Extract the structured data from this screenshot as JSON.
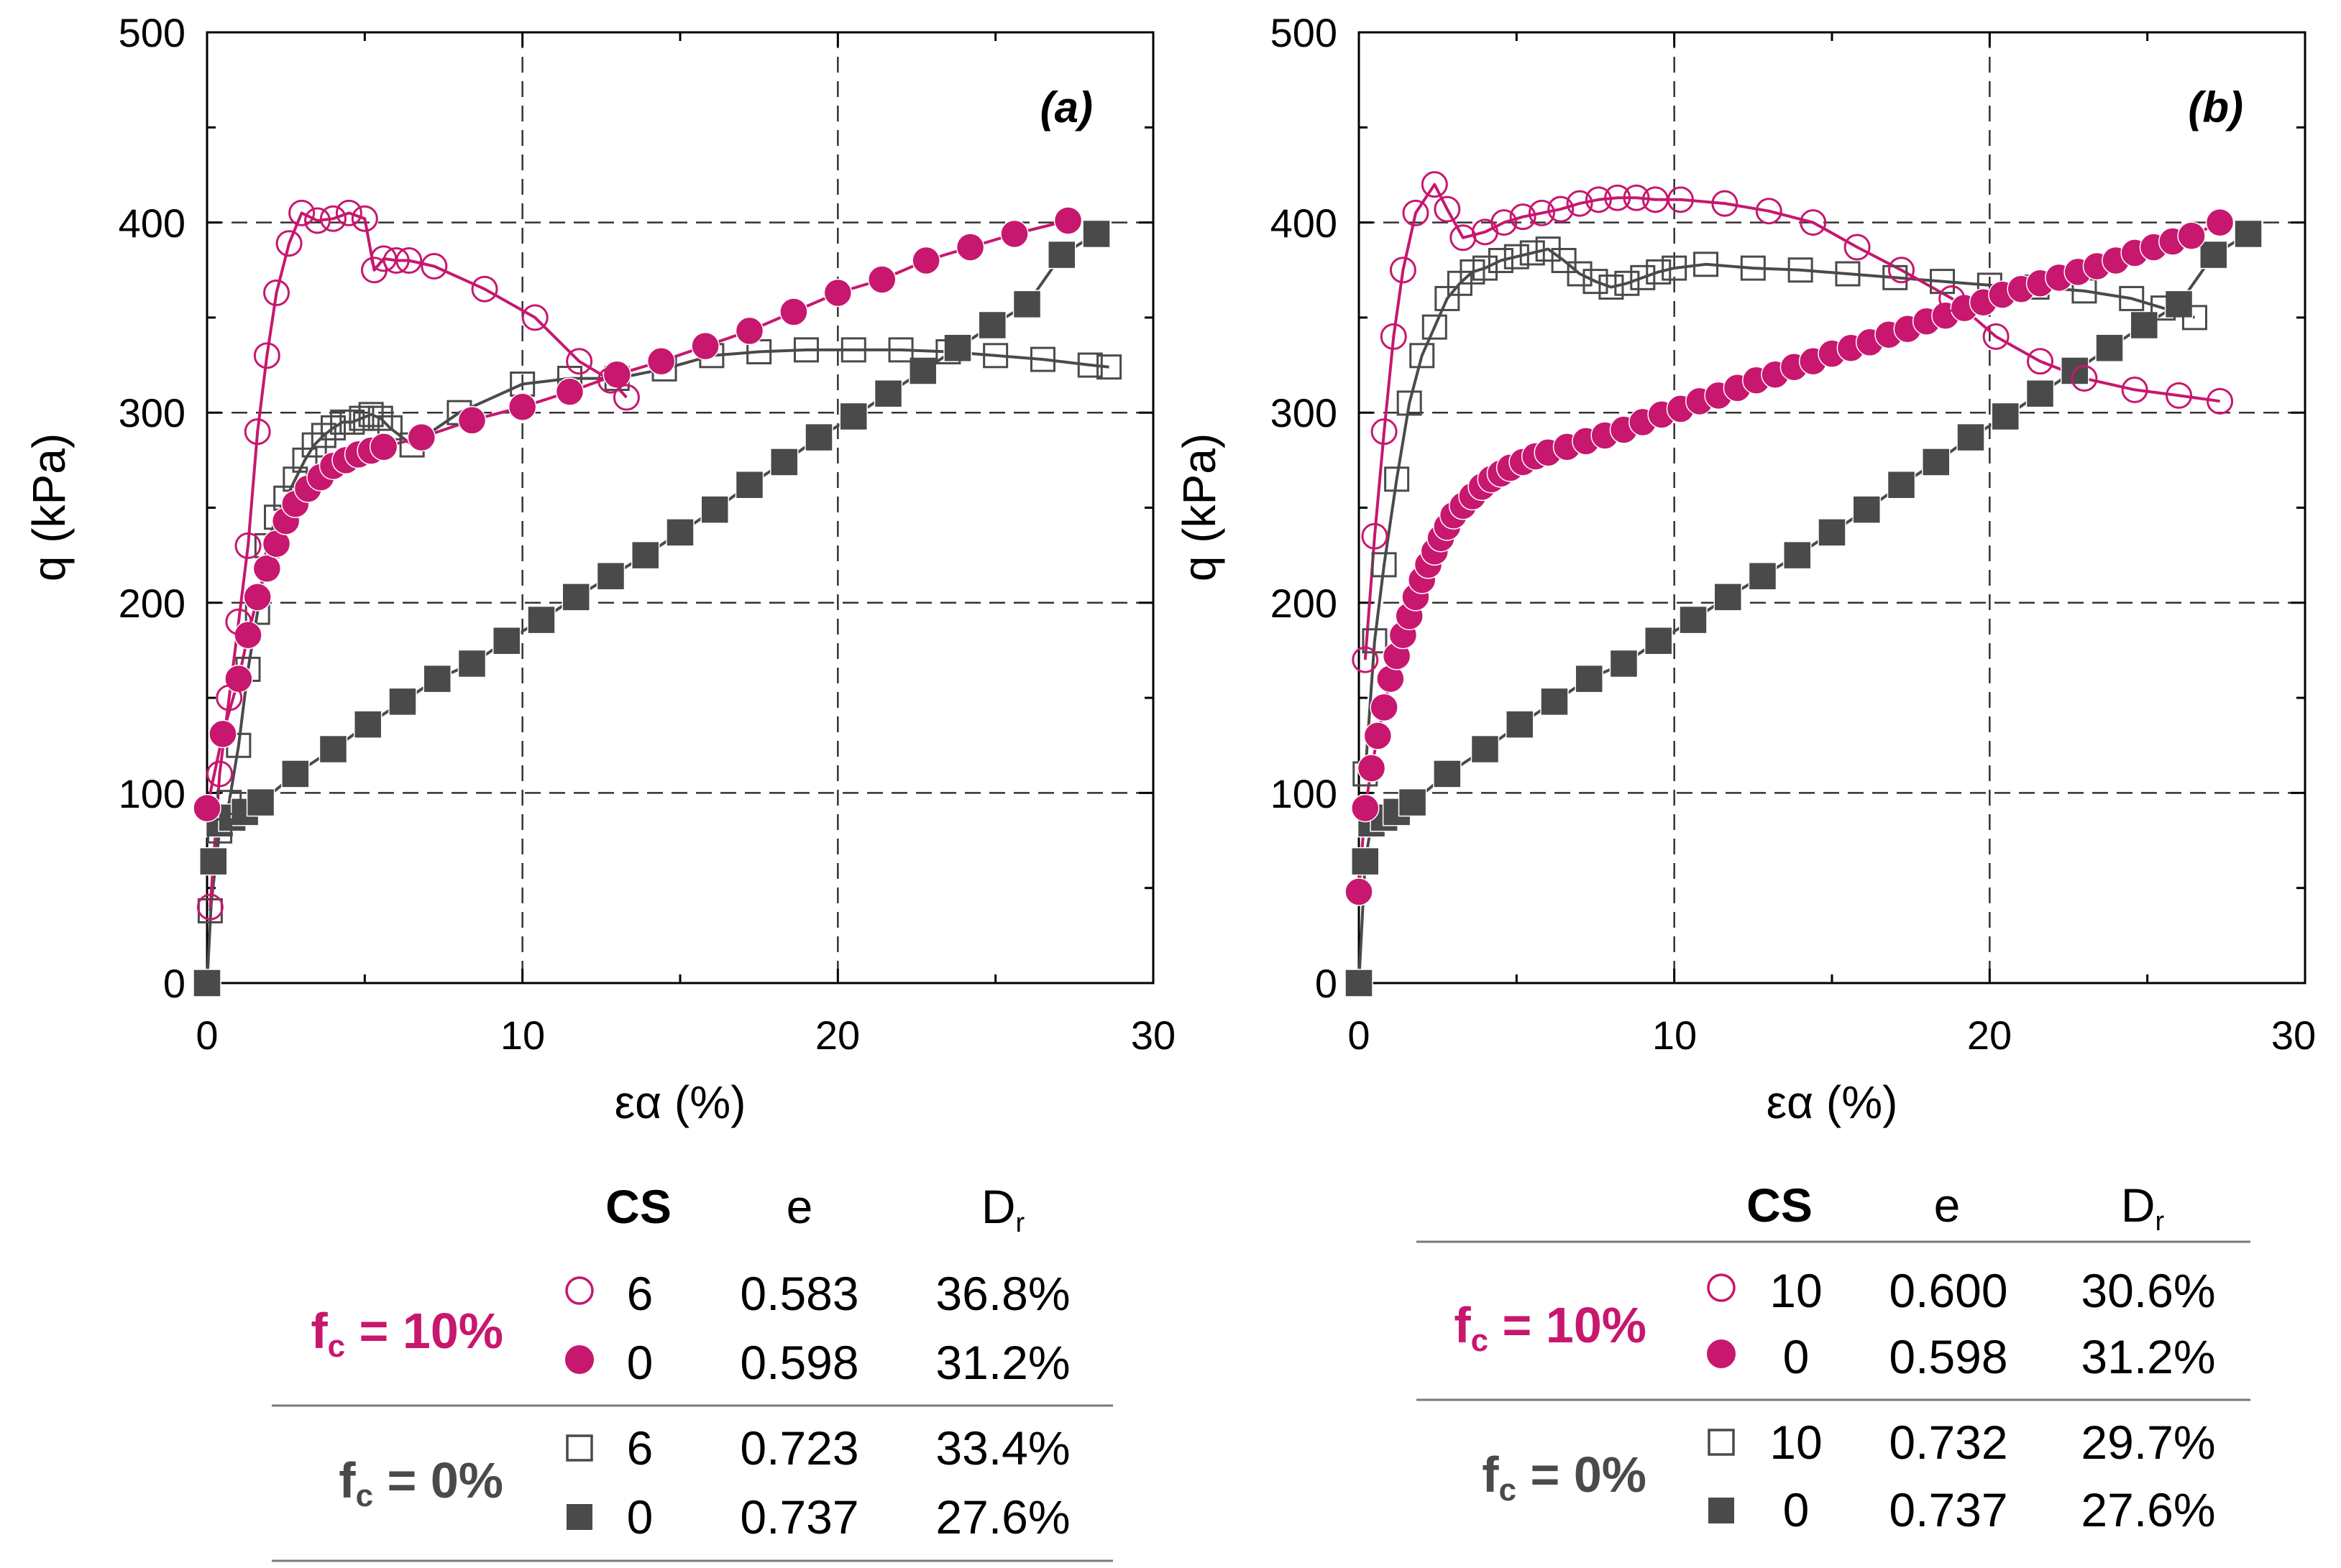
{
  "chart_data": [
    {
      "type": "scatter",
      "panel": "(a)",
      "ylabel": "q (kPa)",
      "xlabel": "εα (%)",
      "xlim": [
        0,
        30
      ],
      "ylim": [
        0,
        500
      ],
      "xticks": [
        "0",
        "10",
        "20",
        "30"
      ],
      "yticks": [
        "0",
        "100",
        "200",
        "300",
        "400",
        "500"
      ],
      "grid": true,
      "series": [
        {
          "name": "f_c = 10%, CS 6",
          "marker": "open-circle",
          "color": "#c7176f",
          "x": [
            0.1,
            0.4,
            0.7,
            1.0,
            1.3,
            1.6,
            1.9,
            2.2,
            2.6,
            3.0,
            3.5,
            4.0,
            4.5,
            5.0,
            5.3,
            5.6,
            6.0,
            6.4,
            7.2,
            8.8,
            10.4,
            11.8,
            12.8,
            13.3
          ],
          "y": [
            40,
            110,
            150,
            190,
            230,
            290,
            330,
            363,
            389,
            405,
            401,
            402,
            405,
            402,
            375,
            381,
            380,
            380,
            377,
            365,
            350,
            327,
            317,
            308
          ]
        },
        {
          "name": "f_c = 10%, CS 0",
          "marker": "filled-circle",
          "color": "#c7176f",
          "x": [
            0,
            0.5,
            1.0,
            1.3,
            1.6,
            1.9,
            2.2,
            2.5,
            2.8,
            3.2,
            3.6,
            4.0,
            4.4,
            4.8,
            5.2,
            5.6,
            6.8,
            8.4,
            10.0,
            11.5,
            13.0,
            14.4,
            15.8,
            17.2,
            18.6,
            20.0,
            21.4,
            22.8,
            24.2,
            25.6,
            27.3
          ],
          "y": [
            92,
            131,
            160,
            183,
            203,
            218,
            231,
            243,
            252,
            260,
            266,
            272,
            275,
            278,
            280,
            282,
            287,
            296,
            303,
            311,
            320,
            327,
            335,
            343,
            353,
            363,
            370,
            380,
            387,
            394,
            401
          ]
        },
        {
          "name": "f_c = 0%, CS 6",
          "marker": "open-square",
          "color": "#4a4a4a",
          "x": [
            0.1,
            0.4,
            0.7,
            1.0,
            1.3,
            1.6,
            1.9,
            2.2,
            2.5,
            2.8,
            3.1,
            3.4,
            3.7,
            4.0,
            4.3,
            4.6,
            4.9,
            5.2,
            5.5,
            5.8,
            6.5,
            8.0,
            10.0,
            11.5,
            13.0,
            14.5,
            16.0,
            17.5,
            19.0,
            20.5,
            22.0,
            23.5,
            25.0,
            26.5,
            28.0,
            28.6
          ],
          "y": [
            38,
            80,
            95,
            125,
            165,
            195,
            230,
            245,
            255,
            265,
            275,
            283,
            288,
            292,
            295,
            295,
            297,
            299,
            297,
            292,
            283,
            300,
            315,
            318,
            318,
            323,
            330,
            332,
            333,
            333,
            333,
            332,
            330,
            328,
            325,
            324
          ]
        },
        {
          "name": "f_c = 0%, CS 0",
          "marker": "filled-square",
          "color": "#4a4a4a",
          "x": [
            0,
            0.2,
            0.4,
            0.8,
            1.2,
            1.7,
            2.8,
            4.0,
            5.1,
            6.2,
            7.3,
            8.4,
            9.5,
            10.6,
            11.7,
            12.8,
            13.9,
            15.0,
            16.1,
            17.2,
            18.3,
            19.4,
            20.5,
            21.6,
            22.7,
            23.8,
            24.9,
            26.0,
            27.1,
            28.2
          ],
          "y": [
            0,
            64,
            84,
            87,
            90,
            95,
            110,
            123,
            136,
            148,
            160,
            168,
            180,
            191,
            203,
            214,
            225,
            237,
            249,
            262,
            274,
            287,
            298,
            310,
            322,
            334,
            346,
            357,
            383,
            394
          ]
        }
      ]
    },
    {
      "type": "scatter",
      "panel": "(b)",
      "ylabel": "q (kPa)",
      "xlabel": "εα (%)",
      "xlim": [
        0,
        30
      ],
      "ylim": [
        0,
        500
      ],
      "xticks": [
        "0",
        "10",
        "20",
        "30"
      ],
      "yticks": [
        "0",
        "100",
        "200",
        "300",
        "400",
        "500"
      ],
      "grid": true,
      "series": [
        {
          "name": "f_c = 10%, CS 10",
          "marker": "open-circle",
          "color": "#c7176f",
          "x": [
            0.2,
            0.5,
            0.8,
            1.1,
            1.4,
            1.8,
            2.4,
            2.8,
            3.3,
            4.0,
            4.6,
            5.2,
            5.8,
            6.4,
            7.0,
            7.6,
            8.2,
            8.8,
            9.4,
            10.2,
            11.6,
            13.0,
            14.4,
            15.8,
            17.2,
            18.8,
            20.2,
            21.6,
            23.0,
            24.6,
            26.0,
            27.3
          ],
          "y": [
            170,
            235,
            290,
            340,
            375,
            405,
            420,
            407,
            392,
            395,
            400,
            403,
            405,
            407,
            410,
            412,
            413,
            413,
            412,
            412,
            410,
            406,
            400,
            387,
            375,
            360,
            340,
            327,
            318,
            312,
            309,
            306
          ]
        },
        {
          "name": "f_c = 10%, CS 0",
          "marker": "filled-circle",
          "color": "#c7176f",
          "x": [
            0,
            0.2,
            0.4,
            0.6,
            0.8,
            1.0,
            1.2,
            1.4,
            1.6,
            1.8,
            2.0,
            2.2,
            2.4,
            2.6,
            2.8,
            3.0,
            3.3,
            3.6,
            3.9,
            4.2,
            4.5,
            4.8,
            5.2,
            5.6,
            6.0,
            6.6,
            7.2,
            7.8,
            8.4,
            9.0,
            9.6,
            10.2,
            10.8,
            11.4,
            12.0,
            12.6,
            13.2,
            13.8,
            14.4,
            15.0,
            15.6,
            16.2,
            16.8,
            17.4,
            18.0,
            18.6,
            19.2,
            19.8,
            20.4,
            21.0,
            21.6,
            22.2,
            22.8,
            23.4,
            24.0,
            24.6,
            25.2,
            25.8,
            26.4,
            27.3
          ],
          "y": [
            48,
            92,
            113,
            130,
            145,
            160,
            172,
            183,
            193,
            203,
            212,
            220,
            227,
            234,
            240,
            246,
            251,
            256,
            261,
            265,
            268,
            271,
            274,
            277,
            279,
            282,
            285,
            288,
            291,
            295,
            299,
            302,
            306,
            309,
            313,
            317,
            320,
            324,
            327,
            331,
            334,
            337,
            341,
            344,
            348,
            351,
            355,
            358,
            362,
            365,
            368,
            371,
            374,
            377,
            380,
            384,
            387,
            390,
            393,
            400
          ]
        },
        {
          "name": "f_c = 0%, CS 10",
          "marker": "open-square",
          "color": "#4a4a4a",
          "x": [
            0.2,
            0.5,
            0.8,
            1.2,
            1.6,
            2.0,
            2.4,
            2.8,
            3.2,
            3.6,
            4.0,
            4.5,
            5.0,
            5.5,
            6.0,
            6.5,
            7.0,
            7.5,
            8.0,
            8.5,
            9.0,
            9.5,
            10.0,
            11.0,
            12.5,
            14.0,
            15.5,
            17.0,
            18.5,
            20.0,
            21.5,
            23.0,
            24.5,
            25.5,
            26.5
          ],
          "y": [
            110,
            180,
            220,
            265,
            305,
            330,
            345,
            360,
            368,
            374,
            376,
            380,
            382,
            384,
            386,
            380,
            373,
            369,
            366,
            368,
            371,
            374,
            376,
            378,
            376,
            375,
            373,
            371,
            369,
            367,
            366,
            364,
            360,
            355,
            350
          ]
        },
        {
          "name": "f_c = 0%, CS 0",
          "marker": "filled-square",
          "color": "#4a4a4a",
          "x": [
            0,
            0.2,
            0.4,
            0.8,
            1.2,
            1.7,
            2.8,
            4.0,
            5.1,
            6.2,
            7.3,
            8.4,
            9.5,
            10.6,
            11.7,
            12.8,
            13.9,
            15.0,
            16.1,
            17.2,
            18.3,
            19.4,
            20.5,
            21.6,
            22.7,
            23.8,
            24.9,
            26.0,
            27.1,
            28.2
          ],
          "y": [
            0,
            64,
            84,
            87,
            90,
            95,
            110,
            123,
            136,
            148,
            160,
            168,
            180,
            191,
            203,
            214,
            225,
            237,
            249,
            262,
            274,
            287,
            298,
            310,
            322,
            334,
            346,
            357,
            383,
            394
          ]
        }
      ]
    }
  ],
  "legend_a": {
    "header": {
      "cs": "CS",
      "e": "e",
      "dr_main": "D",
      "dr_sub": "r"
    },
    "group_10": {
      "f": "f",
      "sub": "c",
      "rest": " = 10%"
    },
    "group_0": {
      "f": "f",
      "sub": "c",
      "rest": " = 0%"
    },
    "rows": [
      {
        "cs": "6",
        "e": "0.583",
        "dr": "36.8%"
      },
      {
        "cs": "0",
        "e": "0.598",
        "dr": "31.2%"
      },
      {
        "cs": "6",
        "e": "0.723",
        "dr": "33.4%"
      },
      {
        "cs": "0",
        "e": "0.737",
        "dr": "27.6%"
      }
    ]
  },
  "legend_b": {
    "header": {
      "cs": "CS",
      "e": "e",
      "dr_main": "D",
      "dr_sub": "r"
    },
    "group_10": {
      "f": "f",
      "sub": "c",
      "rest": " = 10%"
    },
    "group_0": {
      "f": "f",
      "sub": "c",
      "rest": " = 0%"
    },
    "rows": [
      {
        "cs": "10",
        "e": "0.600",
        "dr": "30.6%"
      },
      {
        "cs": "0",
        "e": "0.598",
        "dr": "31.2%"
      },
      {
        "cs": "10",
        "e": "0.732",
        "dr": "29.7%"
      },
      {
        "cs": "0",
        "e": "0.737",
        "dr": "27.6%"
      }
    ]
  },
  "colors": {
    "magenta": "#c7176f",
    "gray": "#4a4a4a",
    "grid": "#555555"
  }
}
